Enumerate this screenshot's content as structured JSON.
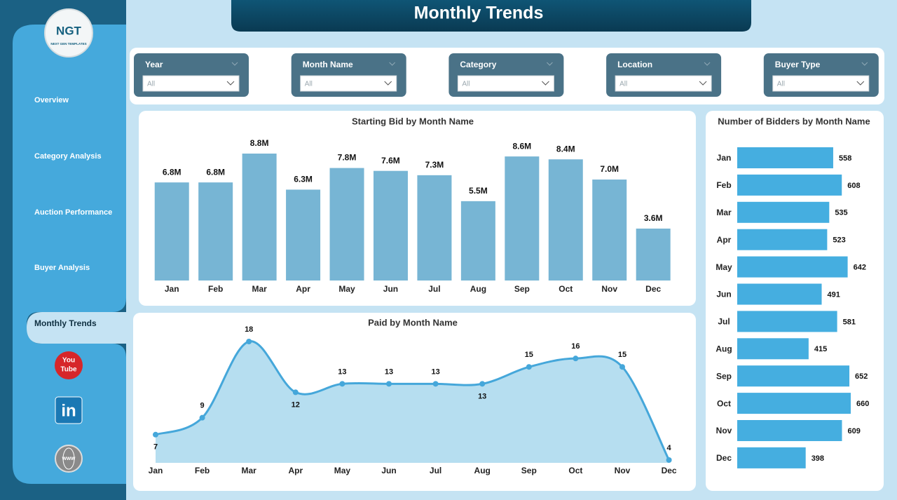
{
  "header": {
    "title": "Monthly Trends"
  },
  "logo": {
    "mark": "NGT",
    "tagline": "NEXT GEN TEMPLATES"
  },
  "nav": [
    "Overview",
    "Category Analysis",
    "Auction Performance",
    "Buyer Analysis",
    "Monthly Trends"
  ],
  "icons": {
    "youtube": [
      "You",
      "Tube"
    ],
    "linkedin": "in",
    "web": "www"
  },
  "filters": [
    {
      "label": "Year",
      "value": "All"
    },
    {
      "label": "Month Name",
      "value": "All"
    },
    {
      "label": "Category",
      "value": "All"
    },
    {
      "label": "Location",
      "value": "All"
    },
    {
      "label": "Buyer Type",
      "value": "All"
    }
  ],
  "chart_data": [
    {
      "type": "bar",
      "title": "Starting Bid by Month Name",
      "categories": [
        "Jan",
        "Feb",
        "Mar",
        "Apr",
        "May",
        "Jun",
        "Jul",
        "Aug",
        "Sep",
        "Oct",
        "Nov",
        "Dec"
      ],
      "values": [
        6800000,
        6800000,
        8800000,
        6300000,
        7800000,
        7600000,
        7300000,
        5500000,
        8600000,
        8400000,
        7000000,
        3600000
      ],
      "value_labels": [
        "6.8M",
        "6.8M",
        "8.8M",
        "6.3M",
        "7.8M",
        "7.6M",
        "7.3M",
        "5.5M",
        "8.6M",
        "8.4M",
        "7.0M",
        "3.6M"
      ],
      "color": "#77b5d4"
    },
    {
      "type": "area",
      "title": "Paid by Month Name",
      "categories": [
        "Jan",
        "Feb",
        "Mar",
        "Apr",
        "May",
        "Jun",
        "Jul",
        "Aug",
        "Sep",
        "Oct",
        "Nov",
        "Dec"
      ],
      "values": [
        7,
        9,
        18,
        12,
        13,
        13,
        13,
        13,
        15,
        16,
        15,
        4
      ],
      "color": "#45a7da",
      "fill": "#b6def0"
    },
    {
      "type": "hbar",
      "title": "Number of Bidders by Month Name",
      "categories": [
        "Jan",
        "Feb",
        "Mar",
        "Apr",
        "May",
        "Jun",
        "Jul",
        "Aug",
        "Sep",
        "Oct",
        "Nov",
        "Dec"
      ],
      "values": [
        558,
        608,
        535,
        523,
        642,
        491,
        581,
        415,
        652,
        660,
        609,
        398
      ],
      "color": "#45aee0"
    }
  ]
}
